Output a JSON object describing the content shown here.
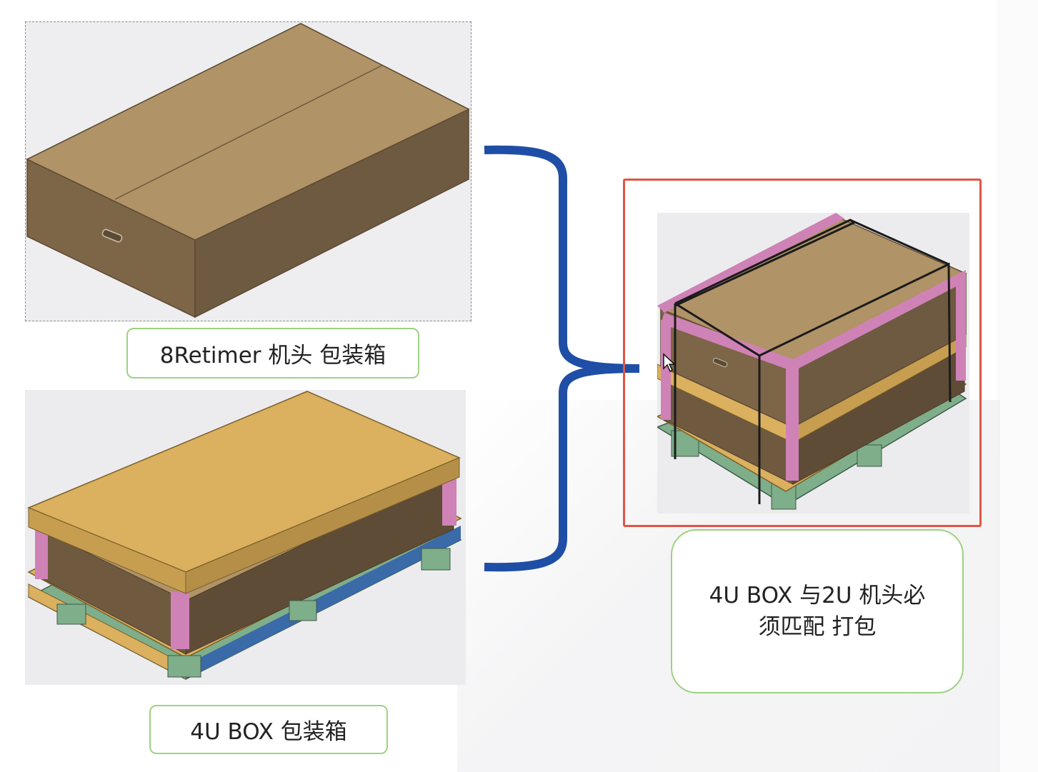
{
  "colors": {
    "cardboard_top": "#b09366",
    "cardboard_side": "#7d6547",
    "lid_yellow": "#dbb05e",
    "corner_pink": "#cf82b6",
    "pallet_green": "#7fae8a",
    "bracket_blue": "#1f4ea6",
    "highlight_red": "#e25444",
    "label_border_green": "#9ed281"
  },
  "figures": {
    "top": {
      "icon": "cardboard-box-icon"
    },
    "bottom": {
      "icon": "pallet-box-icon"
    },
    "right": {
      "icon": "combined-package-icon"
    }
  },
  "labels": {
    "retimer_box": "8Retimer  机头 包装箱",
    "box_4u": "4U BOX 包装箱",
    "combined_line1": "4U BOX 与2U 机头必",
    "combined_line2": "须匹配 打包"
  }
}
